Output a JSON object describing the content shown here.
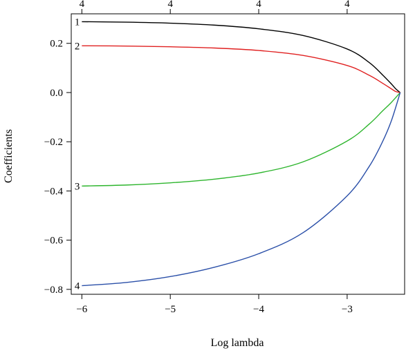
{
  "chart_data": {
    "type": "line",
    "xlabel": "Log lambda",
    "ylabel": "Coefficients",
    "xlim": [
      -6.12,
      -2.35
    ],
    "ylim": [
      -0.82,
      0.32
    ],
    "x_ticks": [
      "−6",
      "−5",
      "−4",
      "−3"
    ],
    "x_tick_values": [
      -6,
      -5,
      -4,
      -3
    ],
    "y_ticks": [
      "0.2",
      "0.0",
      "−0.2",
      "−0.4",
      "−0.6",
      "−0.8"
    ],
    "y_tick_values": [
      0.2,
      0.0,
      -0.2,
      -0.4,
      -0.6,
      -0.8
    ],
    "top_ticks": [
      "4",
      "4",
      "4",
      "4"
    ],
    "top_tick_values": [
      -6,
      -5,
      -4,
      -3
    ],
    "grid": false,
    "series": [
      {
        "label": "1",
        "color": "#000000",
        "x": [
          -6.0,
          -5.5,
          -5.0,
          -4.5,
          -4.0,
          -3.5,
          -3.0,
          -2.75,
          -2.6,
          -2.5,
          -2.45,
          -2.4
        ],
        "y": [
          0.288,
          0.286,
          0.282,
          0.274,
          0.259,
          0.232,
          0.177,
          0.122,
          0.072,
          0.035,
          0.015,
          0.0
        ]
      },
      {
        "label": "2",
        "color": "#e02020",
        "x": [
          -6.0,
          -5.5,
          -5.0,
          -4.5,
          -4.0,
          -3.5,
          -3.0,
          -2.75,
          -2.6,
          -2.5,
          -2.45,
          -2.4
        ],
        "y": [
          0.19,
          0.189,
          0.186,
          0.181,
          0.171,
          0.151,
          0.11,
          0.07,
          0.038,
          0.015,
          0.004,
          0.0
        ]
      },
      {
        "label": "3",
        "color": "#2db52d",
        "x": [
          -6.0,
          -5.5,
          -5.0,
          -4.5,
          -4.0,
          -3.5,
          -3.0,
          -2.75,
          -2.6,
          -2.5,
          -2.4
        ],
        "y": [
          -0.38,
          -0.376,
          -0.367,
          -0.352,
          -0.327,
          -0.282,
          -0.197,
          -0.128,
          -0.075,
          -0.04,
          0.0
        ]
      },
      {
        "label": "4",
        "color": "#2a4fa8",
        "x": [
          -6.0,
          -5.5,
          -5.0,
          -4.5,
          -4.0,
          -3.5,
          -3.0,
          -2.75,
          -2.6,
          -2.5,
          -2.4
        ],
        "y": [
          -0.785,
          -0.772,
          -0.748,
          -0.71,
          -0.655,
          -0.57,
          -0.42,
          -0.3,
          -0.2,
          -0.115,
          0.0
        ]
      }
    ]
  }
}
